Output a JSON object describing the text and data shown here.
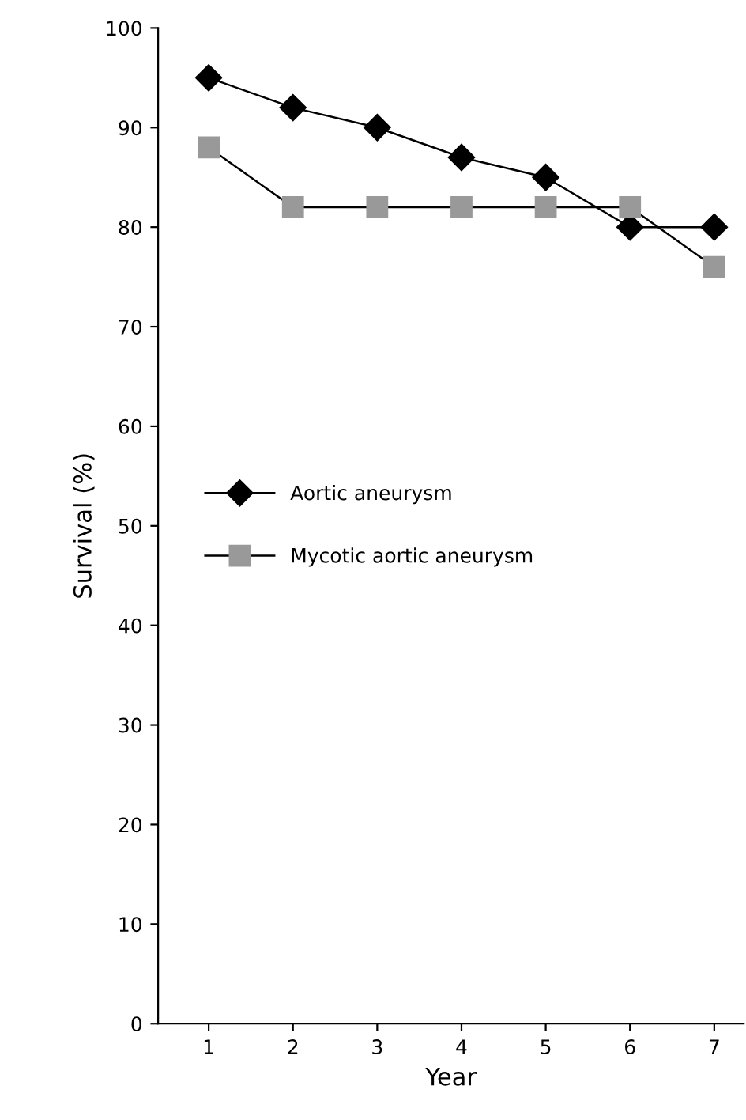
{
  "chart_data": {
    "type": "line",
    "xlabel": "Year",
    "ylabel": "Survival (%)",
    "x": [
      1,
      2,
      3,
      4,
      5,
      6,
      7
    ],
    "series": [
      {
        "name": "Aortic aneurysm",
        "color": "#000000",
        "marker": "diamond",
        "values": [
          95,
          92,
          90,
          87,
          85,
          80,
          80
        ]
      },
      {
        "name": "Mycotic aortic aneurysm",
        "color": "#999999",
        "marker": "square",
        "values": [
          88,
          82,
          82,
          82,
          82,
          82,
          76
        ]
      }
    ],
    "xlim": [
      0.4,
      7.35
    ],
    "xticks": [
      1,
      2,
      3,
      4,
      5,
      6,
      7
    ],
    "ylim": [
      0,
      100
    ],
    "yticks": [
      0,
      10,
      20,
      30,
      40,
      50,
      60,
      70,
      80,
      90,
      100
    ],
    "grid": false,
    "legend": "left",
    "line_style": "solid"
  }
}
